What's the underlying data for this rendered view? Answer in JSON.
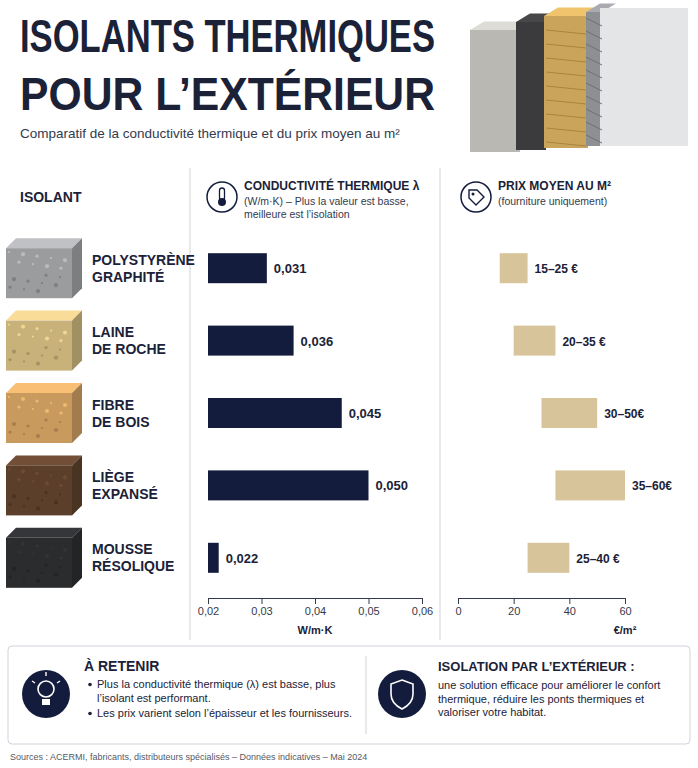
{
  "header": {
    "title": [
      "ISOLANTS THERMIQUES",
      "POUR L’EXTÉRIEUR"
    ],
    "subtitle": "Comparatif de la conductivité thermique et du prix moyen au m²"
  },
  "column_head": "ISOLANT",
  "chart_data": [
    {
      "type": "bar",
      "orientation": "horizontal",
      "title": "CONDUCTIVITÉ THERMIQUE λ",
      "subtitle": "(W/m·K) – Plus la valeur est basse, meilleure est l’isolation",
      "categories": [
        "POLYSTYRÈNE\nGRAPHITÉ",
        "LAINE\nDE ROCHE",
        "FIBRE\nDE BOIS",
        "LIÈGE\nEXPANSÉ",
        "MOUSSE\nRÉSOLIQUE"
      ],
      "values": [
        0.031,
        0.036,
        0.045,
        0.05,
        0.022
      ],
      "value_labels": [
        "0,031",
        "0,036",
        "0,045",
        "0,050",
        "0,022"
      ],
      "data_labels": true,
      "color": "#131c3d",
      "grid": false,
      "xlim": [
        0.02,
        0.06
      ],
      "xticks": [
        {
          "value": 0.02,
          "label": "0,02"
        },
        {
          "value": 0.03,
          "label": "0,03"
        },
        {
          "value": 0.04,
          "label": "0,04"
        },
        {
          "value": 0.05,
          "label": "0,05"
        },
        {
          "value": 0.06,
          "label": "0,06"
        }
      ],
      "x_label": "W/m·K"
    },
    {
      "type": "bar",
      "orientation": "horizontal",
      "title": "PRIX MOYEN AU M²",
      "subtitle": "(fourniture uniquement)",
      "values": [
        [
          15,
          25
        ],
        [
          20,
          35
        ],
        [
          30,
          50
        ],
        [
          35,
          60
        ],
        [
          25,
          40
        ]
      ],
      "value_labels": [
        "15–25 €",
        "20–35 €",
        "30–50€",
        "35–60€",
        "25–40 €"
      ],
      "data_labels": true,
      "color": "#d8c49b",
      "grid": false,
      "xlim": [
        0,
        60
      ],
      "xticks": [
        0,
        20,
        40,
        60
      ],
      "x_label": "€/m²"
    }
  ],
  "footer": {
    "retain": {
      "title": "À RETENIR",
      "items": [
        "Plus la conductivité thermique (λ) est basse, plus l’isolant est performant.",
        "Les prix varient selon l’épaisseur et les fournisseurs."
      ]
    },
    "outdoor": {
      "title": "ISOLATION PAR L’EXTÉRIEUR :",
      "text": "une solution efficace pour améliorer le confort thermique, réduire les ponts thermiques et valoriser votre habitat."
    }
  },
  "sources": "Sources : ACERMI, fabricants, distributeurs spécialisés – Données indicatives – Mai 2024"
}
